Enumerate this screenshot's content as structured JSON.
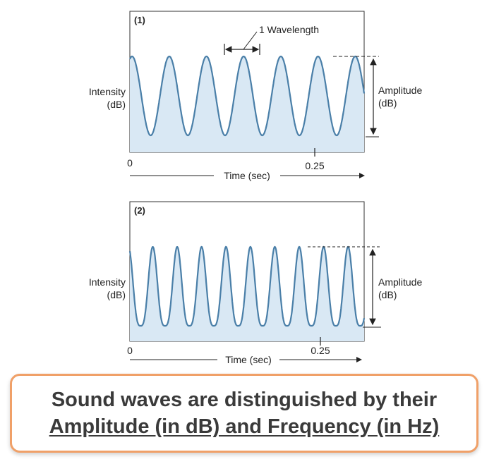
{
  "panels": [
    {
      "id": "(1)",
      "y_label_line1": "Intensity",
      "y_label_line2": "(dB)",
      "amplitude_line1": "Amplitude",
      "amplitude_line2": "(dB)",
      "x_tick_0": "0",
      "x_tick_025": "0.25",
      "x_axis_label": "Time (sec)",
      "wavelength_label": "1 Wavelength",
      "cycles": 6.3
    },
    {
      "id": "(2)",
      "y_label_line1": "Intensity",
      "y_label_line2": "(dB)",
      "amplitude_line1": "Amplitude",
      "amplitude_line2": "(dB)",
      "x_tick_0": "0",
      "x_tick_025": "0.25",
      "x_axis_label": "Time (sec)",
      "cycles": 9.6
    }
  ],
  "caption": {
    "line1": "Sound waves are distinguished by their",
    "line2": "Amplitude (in dB) and Frequency (in Hz)"
  },
  "colors": {
    "wave": "#4a7fa8",
    "fill": "#d9e8f4",
    "border": "#f0a068"
  }
}
